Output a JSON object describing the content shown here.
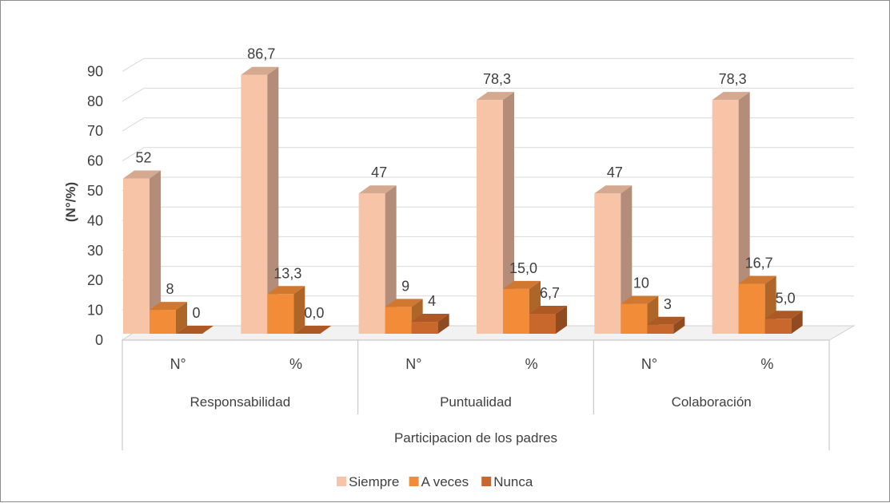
{
  "chart_data": {
    "type": "bar",
    "style": "3d-clustered-column",
    "ylabel": "(N°/%)",
    "xlabel": "Participacion de los padres",
    "ylim": [
      0,
      90
    ],
    "yticks": [
      0,
      10,
      20,
      30,
      40,
      50,
      60,
      70,
      80,
      90
    ],
    "groups": [
      "Responsabilidad",
      "Puntualidad",
      "Colaboración"
    ],
    "categories": [
      "N°",
      "%",
      "N°",
      "%",
      "N°",
      "%"
    ],
    "series": [
      {
        "name": "Siempre",
        "color": "#F8C4A8",
        "values": [
          52,
          86.7,
          47,
          78.3,
          47,
          78.3
        ],
        "labels": [
          "52",
          "86,7",
          "47",
          "78,3",
          "47",
          "78,3"
        ]
      },
      {
        "name": "A veces",
        "color": "#F28C38",
        "values": [
          8,
          13.3,
          9,
          15.0,
          10,
          16.7
        ],
        "labels": [
          "8",
          "13,3",
          "9",
          "15,0",
          "10",
          "16,7"
        ]
      },
      {
        "name": "Nunca",
        "color": "#C8682C",
        "values": [
          0,
          0.0,
          4,
          6.7,
          3,
          5.0
        ],
        "labels": [
          "0",
          "0,0",
          "4",
          "6,7",
          "3",
          "5,0"
        ]
      }
    ],
    "grid": true,
    "legend": "bottom"
  }
}
